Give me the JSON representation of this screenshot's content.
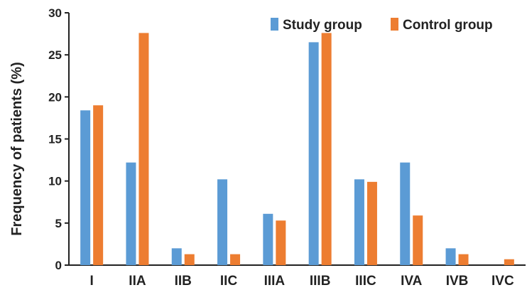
{
  "chart_data": {
    "type": "bar",
    "categories": [
      "I",
      "IIA",
      "IIB",
      "IIC",
      "IIIA",
      "IIIB",
      "IIIC",
      "IVA",
      "IVB",
      "IVC"
    ],
    "series": [
      {
        "name": "Study group",
        "color": "#5b9bd5",
        "values": [
          18.4,
          12.2,
          2.0,
          10.2,
          6.1,
          26.5,
          10.2,
          12.2,
          2.0,
          0.0
        ]
      },
      {
        "name": "Control group",
        "color": "#ed7d31",
        "values": [
          19.0,
          27.6,
          1.3,
          1.3,
          5.3,
          27.6,
          9.9,
          5.9,
          1.3,
          0.7
        ]
      }
    ],
    "title": "",
    "xlabel": "",
    "ylabel": "Frequency of patients (%)",
    "ylim": [
      0,
      30
    ],
    "yticks": [
      0,
      5,
      10,
      15,
      20,
      25,
      30
    ],
    "grid": false,
    "legend_position": "top-right"
  }
}
